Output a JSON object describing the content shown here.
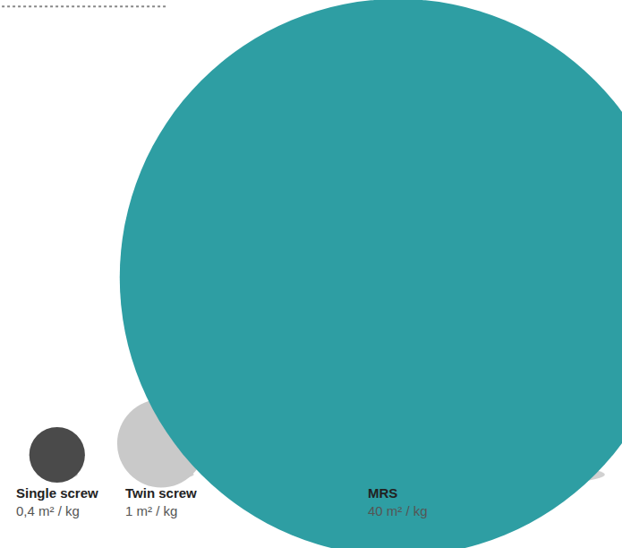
{
  "chart_data": {
    "type": "bubble",
    "categories": [
      "Single screw",
      "Twin screw",
      "MRS"
    ],
    "values": [
      0.4,
      1,
      40
    ],
    "value_labels": [
      "0,4 m² / kg",
      "1 m² / kg",
      "40 m² / kg"
    ],
    "colors": [
      "#4a4a4a",
      "#c9c9c9",
      "#2e9ea3"
    ],
    "data_labels": true,
    "tick_labels": false
  }
}
